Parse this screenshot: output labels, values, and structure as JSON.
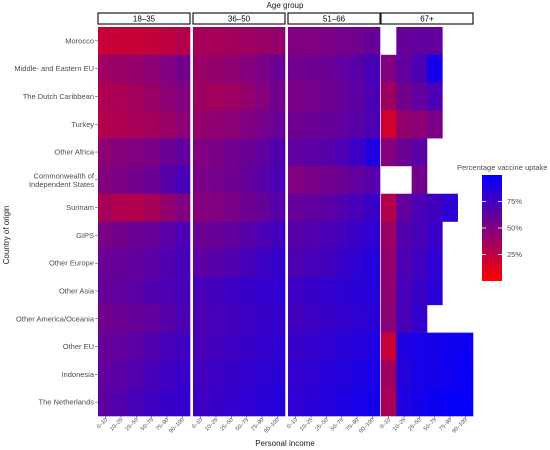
{
  "chart_data": {
    "type": "heatmap",
    "top_axis_title": "Age group",
    "xlabel": "Personal income",
    "ylabel": "Country of origin",
    "legend_title": "Percentage vaccine uptake",
    "legend_ticks": [
      "75%",
      "50%",
      "25%"
    ],
    "legend_tick_values": [
      75,
      50,
      25
    ],
    "legend_range": [
      0,
      100
    ],
    "legend_colors": {
      "low": "#ff0000",
      "high": "#0000ff"
    },
    "panels": [
      "18–35",
      "36–50",
      "51–66",
      "67+"
    ],
    "x_categories": [
      "0–10",
      "10–25",
      "25–50",
      "50–75",
      "75–90",
      "90–100"
    ],
    "y_categories": [
      "Morocco",
      "Middle- and Eastern EU",
      "The Dutch Caribbean",
      "Turkey",
      "Other Africa",
      "Commonwealth of Independent States",
      "Surinam",
      "GIPS",
      "Other Europe",
      "Other Asia",
      "Other America/Oceania",
      "Other EU",
      "Indonesia",
      "The Netherlands"
    ],
    "y_display": [
      [
        "Morocco"
      ],
      [
        "Middle- and Eastern EU"
      ],
      [
        "The Dutch Caribbean"
      ],
      [
        "Turkey"
      ],
      [
        "Other Africa"
      ],
      [
        "Commonwealth of",
        "Independent States"
      ],
      [
        "Surinam"
      ],
      [
        "GIPS"
      ],
      [
        "Other Europe"
      ],
      [
        "Other Asia"
      ],
      [
        "Other America/Oceania"
      ],
      [
        "Other EU"
      ],
      [
        "Indonesia"
      ],
      [
        "The Netherlands"
      ]
    ],
    "values": [
      [
        [
          22,
          22,
          22,
          23,
          25,
          30
        ],
        [
          38,
          40,
          42,
          45,
          50,
          55
        ],
        [
          32,
          34,
          36,
          40,
          45,
          50
        ],
        [
          30,
          32,
          34,
          36,
          40,
          45
        ],
        [
          45,
          48,
          50,
          52,
          58,
          62
        ],
        [
          50,
          52,
          55,
          58,
          65,
          72
        ],
        [
          35,
          30,
          30,
          35,
          42,
          50
        ],
        [
          52,
          55,
          58,
          60,
          65,
          70
        ],
        [
          58,
          60,
          62,
          65,
          68,
          72
        ],
        [
          60,
          62,
          65,
          68,
          70,
          72
        ],
        [
          55,
          58,
          60,
          62,
          66,
          70
        ],
        [
          60,
          62,
          65,
          68,
          72,
          75
        ],
        [
          62,
          65,
          68,
          72,
          75,
          78
        ],
        [
          64,
          68,
          72,
          75,
          78,
          80
        ]
      ],
      [
        [
          35,
          35,
          36,
          38,
          40,
          42
        ],
        [
          40,
          42,
          44,
          48,
          52,
          58
        ],
        [
          38,
          36,
          38,
          42,
          48,
          55
        ],
        [
          42,
          44,
          46,
          50,
          54,
          58
        ],
        [
          50,
          52,
          55,
          58,
          62,
          68
        ],
        [
          52,
          54,
          56,
          60,
          65,
          70
        ],
        [
          48,
          50,
          52,
          56,
          60,
          66
        ],
        [
          58,
          60,
          62,
          66,
          70,
          74
        ],
        [
          64,
          66,
          68,
          72,
          76,
          80
        ],
        [
          72,
          74,
          76,
          78,
          80,
          82
        ],
        [
          70,
          72,
          74,
          76,
          78,
          80
        ],
        [
          72,
          74,
          76,
          78,
          80,
          82
        ],
        [
          74,
          76,
          78,
          80,
          82,
          84
        ],
        [
          76,
          78,
          80,
          82,
          84,
          86
        ]
      ],
      [
        [
          50,
          50,
          52,
          54,
          56,
          60
        ],
        [
          55,
          56,
          58,
          62,
          66,
          72
        ],
        [
          52,
          54,
          56,
          60,
          64,
          70
        ],
        [
          56,
          58,
          60,
          62,
          66,
          70
        ],
        [
          62,
          64,
          66,
          70,
          76,
          88
        ],
        [
          50,
          52,
          55,
          58,
          62,
          66
        ],
        [
          60,
          62,
          64,
          68,
          72,
          78
        ],
        [
          66,
          68,
          70,
          74,
          78,
          82
        ],
        [
          70,
          72,
          74,
          78,
          82,
          86
        ],
        [
          76,
          78,
          80,
          82,
          84,
          86
        ],
        [
          74,
          76,
          78,
          80,
          82,
          84
        ],
        [
          78,
          80,
          82,
          84,
          86,
          88
        ],
        [
          80,
          82,
          84,
          86,
          88,
          90
        ],
        [
          82,
          84,
          86,
          88,
          90,
          92
        ]
      ],
      [
        [
          null,
          60,
          62,
          62,
          null,
          null
        ],
        [
          50,
          62,
          70,
          92,
          null,
          null
        ],
        [
          38,
          55,
          62,
          70,
          null,
          null
        ],
        [
          18,
          42,
          45,
          52,
          null,
          null
        ],
        [
          48,
          58,
          65,
          null,
          null,
          null
        ],
        [
          null,
          null,
          55,
          null,
          null,
          null
        ],
        [
          30,
          62,
          70,
          75,
          82,
          null
        ],
        [
          40,
          68,
          72,
          78,
          null,
          null
        ],
        [
          42,
          70,
          75,
          82,
          null,
          null
        ],
        [
          44,
          72,
          78,
          84,
          null,
          null
        ],
        [
          46,
          72,
          80,
          null,
          null,
          null
        ],
        [
          22,
          88,
          90,
          92,
          94,
          95
        ],
        [
          38,
          86,
          90,
          92,
          94,
          96
        ],
        [
          34,
          88,
          92,
          95,
          97,
          98
        ]
      ]
    ]
  }
}
